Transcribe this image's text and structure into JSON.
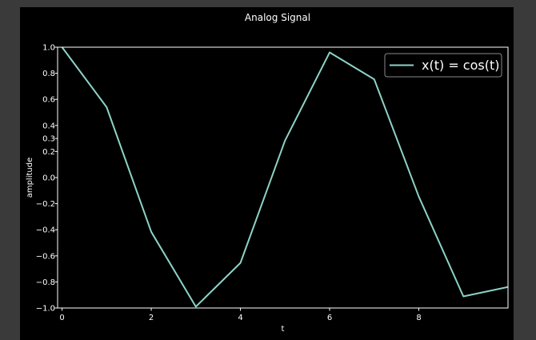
{
  "colors": {
    "background": "#000000",
    "window": "#3a3a3a",
    "axes": "#ffffff",
    "line": "#8dd3c7"
  },
  "chart_data": {
    "type": "line",
    "title": "Analog Signal",
    "xlabel": "t",
    "ylabel": "amplitude",
    "xlim": [
      -0.1,
      10
    ],
    "ylim": [
      -1.0,
      1.0
    ],
    "x_ticks": [
      0,
      2,
      4,
      6,
      8
    ],
    "x_tick_labels": [
      "0",
      "2",
      "4",
      "6",
      "8"
    ],
    "y_ticks": [
      1.0,
      0.8,
      0.6,
      0.4,
      0.3,
      0.2,
      0.0,
      -0.2,
      -0.4,
      -0.6,
      -0.8,
      -1.0
    ],
    "y_tick_labels": [
      "1.0",
      "0.8",
      "0.6",
      "0.4",
      "0.3",
      "0.2",
      "0.0",
      "−0.2",
      "−0.4",
      "−0.6",
      "−0.8",
      "−1.0"
    ],
    "grid": false,
    "legend_position": "top-right",
    "series": [
      {
        "name": "x(t) = cos(t)",
        "color": "#8dd3c7",
        "x": [
          0,
          1,
          2,
          3,
          4,
          5,
          6,
          7,
          8,
          9,
          10
        ],
        "y": [
          1.0,
          0.54,
          -0.416,
          -0.99,
          -0.654,
          0.284,
          0.96,
          0.754,
          -0.146,
          -0.911,
          -0.839
        ]
      }
    ]
  }
}
